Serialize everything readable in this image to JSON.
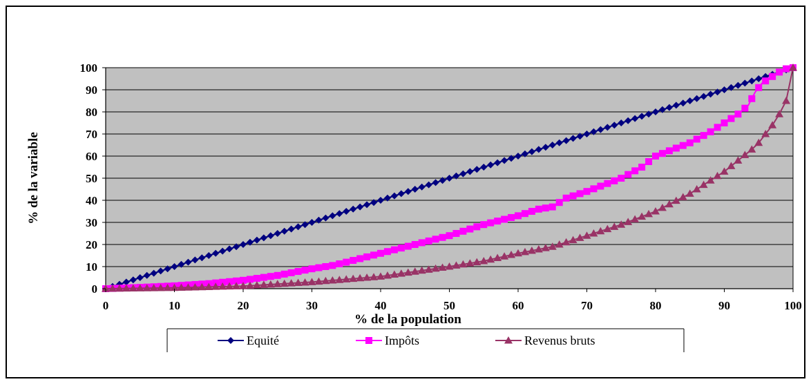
{
  "chart_data": {
    "type": "line",
    "xlabel": "% de la population",
    "ylabel": "% de la variable",
    "xlim": [
      0,
      100
    ],
    "ylim": [
      0,
      100
    ],
    "xticks": [
      0,
      10,
      20,
      30,
      40,
      50,
      60,
      70,
      80,
      90,
      100
    ],
    "yticks": [
      0,
      10,
      20,
      30,
      40,
      50,
      60,
      70,
      80,
      90,
      100
    ],
    "grid": "horizontal",
    "plot_background": "#c0c0c0",
    "legend_position": "bottom",
    "series": [
      {
        "name": "Equité",
        "color": "#000080",
        "marker": "diamond",
        "points": [
          [
            0,
            0
          ],
          [
            5,
            5
          ],
          [
            10,
            10
          ],
          [
            15,
            15
          ],
          [
            20,
            20
          ],
          [
            25,
            25
          ],
          [
            30,
            30
          ],
          [
            35,
            35
          ],
          [
            40,
            40
          ],
          [
            45,
            45
          ],
          [
            50,
            50
          ],
          [
            55,
            55
          ],
          [
            60,
            60
          ],
          [
            65,
            65
          ],
          [
            70,
            70
          ],
          [
            75,
            75
          ],
          [
            80,
            80
          ],
          [
            85,
            85
          ],
          [
            90,
            90
          ],
          [
            95,
            95
          ],
          [
            100,
            100
          ]
        ]
      },
      {
        "name": "Impôts",
        "color": "#ff00ff",
        "marker": "square",
        "points": [
          [
            0,
            0
          ],
          [
            5,
            0.6
          ],
          [
            10,
            1.3
          ],
          [
            15,
            2.3
          ],
          [
            20,
            3.8
          ],
          [
            25,
            6
          ],
          [
            30,
            9
          ],
          [
            33,
            10.5
          ],
          [
            35,
            12
          ],
          [
            40,
            16
          ],
          [
            45,
            20
          ],
          [
            50,
            24
          ],
          [
            55,
            29
          ],
          [
            60,
            33
          ],
          [
            63,
            36
          ],
          [
            65,
            37
          ],
          [
            67,
            41
          ],
          [
            70,
            44
          ],
          [
            75,
            50
          ],
          [
            78,
            55
          ],
          [
            80,
            60
          ],
          [
            85,
            66
          ],
          [
            88,
            71
          ],
          [
            90,
            75
          ],
          [
            92,
            79
          ],
          [
            93.5,
            83
          ],
          [
            94.5,
            89
          ],
          [
            95.5,
            93
          ],
          [
            97,
            96
          ],
          [
            98,
            98
          ],
          [
            99,
            99.5
          ],
          [
            100,
            100
          ]
        ]
      },
      {
        "name": "Revenus bruts",
        "color": "#993366",
        "marker": "triangle",
        "points": [
          [
            0,
            0
          ],
          [
            10,
            0.4
          ],
          [
            20,
            1.2
          ],
          [
            30,
            3
          ],
          [
            40,
            5.5
          ],
          [
            50,
            10
          ],
          [
            55,
            12.5
          ],
          [
            60,
            16
          ],
          [
            65,
            19
          ],
          [
            70,
            24
          ],
          [
            75,
            29
          ],
          [
            80,
            35
          ],
          [
            85,
            43
          ],
          [
            88,
            49
          ],
          [
            90,
            53
          ],
          [
            92,
            58
          ],
          [
            94,
            63
          ],
          [
            95,
            66
          ],
          [
            96,
            70
          ],
          [
            97,
            74
          ],
          [
            98,
            79
          ],
          [
            99,
            85
          ],
          [
            100,
            100
          ]
        ]
      }
    ]
  }
}
